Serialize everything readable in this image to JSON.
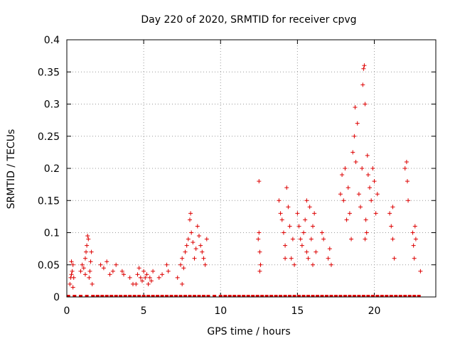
{
  "chart_data": {
    "type": "scatter",
    "title": "Day 220 of 2020, SRMTID for receiver cpvg",
    "xlabel": "GPS time / hours",
    "ylabel": "SRMTID / TECUs",
    "xlim": [
      0,
      24
    ],
    "ylim": [
      0,
      0.4
    ],
    "x_ticks": [
      "0",
      "5",
      "10",
      "15",
      "20"
    ],
    "x_tick_values": [
      0,
      5,
      10,
      15,
      20
    ],
    "y_ticks": [
      "0",
      "0.05",
      "0.1",
      "0.15",
      "0.2",
      "0.25",
      "0.3",
      "0.35",
      "0.4"
    ],
    "y_tick_values": [
      0,
      0.05,
      0.1,
      0.15,
      0.2,
      0.25,
      0.3,
      0.35,
      0.4
    ],
    "grid": true,
    "marker": "+",
    "series": [
      {
        "name": "SRMTID",
        "color": "#dd0000",
        "points": [
          [
            0.2,
            0.02
          ],
          [
            0.25,
            0.03
          ],
          [
            0.3,
            0.035
          ],
          [
            0.35,
            0.04
          ],
          [
            0.4,
            0.05
          ],
          [
            0.45,
            0.03
          ],
          [
            0.3,
            0.055
          ],
          [
            0.4,
            0.015
          ],
          [
            0.9,
            0.04
          ],
          [
            1.0,
            0.05
          ],
          [
            1.1,
            0.045
          ],
          [
            1.2,
            0.06
          ],
          [
            1.25,
            0.07
          ],
          [
            1.3,
            0.08
          ],
          [
            1.35,
            0.095
          ],
          [
            1.4,
            0.09
          ],
          [
            1.45,
            0.03
          ],
          [
            1.5,
            0.04
          ],
          [
            1.55,
            0.055
          ],
          [
            1.6,
            0.07
          ],
          [
            1.65,
            0.02
          ],
          [
            1.2,
            0.035
          ],
          [
            2.2,
            0.05
          ],
          [
            2.4,
            0.045
          ],
          [
            2.6,
            0.055
          ],
          [
            2.8,
            0.035
          ],
          [
            3.0,
            0.04
          ],
          [
            3.2,
            0.05
          ],
          [
            3.6,
            0.04
          ],
          [
            3.7,
            0.035
          ],
          [
            4.1,
            0.03
          ],
          [
            4.3,
            0.02
          ],
          [
            4.5,
            0.02
          ],
          [
            4.6,
            0.035
          ],
          [
            4.7,
            0.045
          ],
          [
            4.8,
            0.03
          ],
          [
            4.9,
            0.025
          ],
          [
            5.0,
            0.04
          ],
          [
            5.1,
            0.03
          ],
          [
            5.2,
            0.035
          ],
          [
            5.3,
            0.02
          ],
          [
            5.4,
            0.03
          ],
          [
            5.5,
            0.025
          ],
          [
            5.6,
            0.04
          ],
          [
            6.0,
            0.03
          ],
          [
            6.2,
            0.035
          ],
          [
            6.5,
            0.05
          ],
          [
            6.6,
            0.04
          ],
          [
            7.2,
            0.03
          ],
          [
            7.4,
            0.05
          ],
          [
            7.5,
            0.06
          ],
          [
            7.6,
            0.045
          ],
          [
            7.7,
            0.07
          ],
          [
            7.8,
            0.08
          ],
          [
            7.9,
            0.09
          ],
          [
            8.0,
            0.12
          ],
          [
            8.05,
            0.13
          ],
          [
            8.1,
            0.1
          ],
          [
            8.2,
            0.085
          ],
          [
            8.3,
            0.06
          ],
          [
            8.4,
            0.075
          ],
          [
            8.5,
            0.11
          ],
          [
            8.6,
            0.095
          ],
          [
            8.7,
            0.08
          ],
          [
            8.8,
            0.07
          ],
          [
            8.9,
            0.06
          ],
          [
            9.0,
            0.05
          ],
          [
            9.1,
            0.09
          ],
          [
            7.5,
            0.02
          ],
          [
            12.5,
            0.18
          ],
          [
            12.5,
            0.1
          ],
          [
            12.55,
            0.07
          ],
          [
            12.6,
            0.05
          ],
          [
            12.45,
            0.09
          ],
          [
            12.55,
            0.04
          ],
          [
            13.8,
            0.15
          ],
          [
            13.9,
            0.13
          ],
          [
            14.0,
            0.12
          ],
          [
            14.1,
            0.1
          ],
          [
            14.2,
            0.08
          ],
          [
            14.3,
            0.17
          ],
          [
            14.4,
            0.14
          ],
          [
            14.5,
            0.11
          ],
          [
            14.6,
            0.06
          ],
          [
            14.7,
            0.09
          ],
          [
            14.8,
            0.05
          ],
          [
            14.2,
            0.06
          ],
          [
            15.0,
            0.13
          ],
          [
            15.1,
            0.11
          ],
          [
            15.2,
            0.09
          ],
          [
            15.3,
            0.08
          ],
          [
            15.4,
            0.1
          ],
          [
            15.5,
            0.12
          ],
          [
            15.6,
            0.07
          ],
          [
            15.7,
            0.06
          ],
          [
            15.8,
            0.14
          ],
          [
            15.9,
            0.09
          ],
          [
            16.0,
            0.11
          ],
          [
            16.1,
            0.13
          ],
          [
            16.2,
            0.07
          ],
          [
            15.6,
            0.15
          ],
          [
            16.0,
            0.05
          ],
          [
            16.6,
            0.1
          ],
          [
            16.7,
            0.09
          ],
          [
            17.0,
            0.06
          ],
          [
            17.1,
            0.075
          ],
          [
            17.2,
            0.05
          ],
          [
            17.8,
            0.16
          ],
          [
            17.9,
            0.19
          ],
          [
            18.0,
            0.15
          ],
          [
            18.1,
            0.2
          ],
          [
            18.2,
            0.12
          ],
          [
            18.3,
            0.17
          ],
          [
            18.4,
            0.13
          ],
          [
            18.5,
            0.09
          ],
          [
            18.6,
            0.225
          ],
          [
            18.7,
            0.25
          ],
          [
            18.75,
            0.295
          ],
          [
            18.8,
            0.21
          ],
          [
            18.9,
            0.27
          ],
          [
            19.0,
            0.16
          ],
          [
            19.1,
            0.14
          ],
          [
            19.2,
            0.2
          ],
          [
            19.25,
            0.33
          ],
          [
            19.3,
            0.355
          ],
          [
            19.35,
            0.36
          ],
          [
            19.4,
            0.3
          ],
          [
            19.45,
            0.12
          ],
          [
            19.5,
            0.1
          ],
          [
            19.55,
            0.22
          ],
          [
            19.6,
            0.19
          ],
          [
            19.7,
            0.17
          ],
          [
            19.8,
            0.15
          ],
          [
            19.9,
            0.2
          ],
          [
            20.0,
            0.18
          ],
          [
            20.1,
            0.13
          ],
          [
            20.2,
            0.16
          ],
          [
            19.4,
            0.09
          ],
          [
            21.0,
            0.13
          ],
          [
            21.1,
            0.11
          ],
          [
            21.2,
            0.09
          ],
          [
            21.3,
            0.06
          ],
          [
            21.2,
            0.14
          ],
          [
            22.0,
            0.2
          ],
          [
            22.1,
            0.21
          ],
          [
            22.15,
            0.18
          ],
          [
            22.2,
            0.15
          ],
          [
            22.5,
            0.1
          ],
          [
            22.55,
            0.08
          ],
          [
            22.6,
            0.06
          ],
          [
            22.65,
            0.11
          ],
          [
            22.7,
            0.09
          ],
          [
            23.0,
            0.04
          ]
        ],
        "zero_x": [
          0.1,
          0.5,
          0.9,
          1.3,
          1.7,
          2.0,
          2.3,
          2.6,
          2.9,
          3.2,
          3.5,
          3.8,
          4.1,
          4.4,
          4.7,
          5.0,
          5.3,
          5.6,
          5.9,
          6.2,
          6.5,
          6.8,
          7.1,
          7.4,
          7.7,
          8.0,
          8.3,
          8.6,
          8.9,
          9.2,
          9.6,
          10.0,
          10.3,
          10.6,
          10.9,
          11.2,
          11.5,
          11.8,
          12.1,
          12.4,
          12.7,
          13.0,
          13.3,
          13.6,
          13.9,
          14.2,
          14.5,
          14.8,
          15.1,
          15.4,
          15.7,
          16.0,
          16.3,
          16.6,
          16.9,
          17.2,
          17.5,
          17.8,
          18.1,
          18.4,
          18.7,
          19.0,
          19.3,
          19.6,
          19.9,
          20.2,
          20.5,
          20.8,
          21.1,
          21.4,
          21.7,
          22.0,
          22.3,
          22.6,
          22.9
        ]
      }
    ]
  }
}
